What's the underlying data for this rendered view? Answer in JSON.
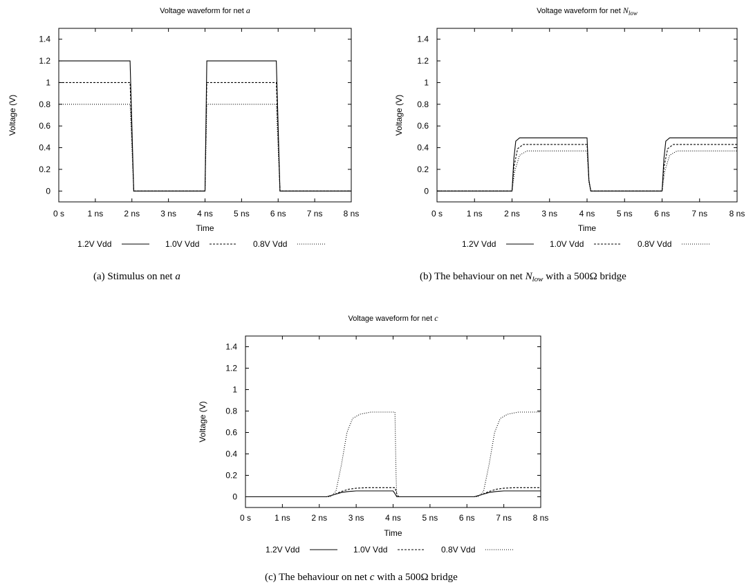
{
  "chart_data": [
    {
      "type": "line",
      "title": "Voltage waveform for net",
      "title_var": "a",
      "title_sub": "",
      "xlabel": "Time",
      "ylabel": "Voltage (V)",
      "xlim": [
        0,
        8
      ],
      "ylim": [
        -0.1,
        1.5
      ],
      "xticks": [
        "0  s",
        "1 ns",
        "2 ns",
        "3 ns",
        "4 ns",
        "5 ns",
        "6 ns",
        "7 ns",
        "8 ns"
      ],
      "yticks": [
        "0",
        "0.2",
        "0.4",
        "0.6",
        "0.8",
        "1",
        "1.2",
        "1.4"
      ],
      "ytick_values": [
        0,
        0.2,
        0.4,
        0.6,
        0.8,
        1.0,
        1.2,
        1.4
      ],
      "grid": false,
      "legend_placement": "bottom",
      "caption_label": "(a)",
      "caption_text": "Stimulus on net",
      "caption_var": "a",
      "caption_tail": "",
      "series": [
        {
          "name": "1.2V Vdd",
          "dash": "solid",
          "x": [
            0,
            1.95,
            2.05,
            4.0,
            4.05,
            5.95,
            6.05,
            8.0
          ],
          "y": [
            1.2,
            1.2,
            0,
            0,
            1.2,
            1.2,
            0,
            0
          ]
        },
        {
          "name": "1.0V Vdd",
          "dash": "dashed",
          "x": [
            0,
            1.95,
            2.05,
            4.0,
            4.05,
            5.95,
            6.05,
            8.0
          ],
          "y": [
            1.0,
            1.0,
            0,
            0,
            1.0,
            1.0,
            0,
            0
          ]
        },
        {
          "name": "0.8V Vdd",
          "dash": "dotted",
          "x": [
            0,
            1.95,
            2.05,
            4.0,
            4.05,
            5.95,
            6.05,
            8.0
          ],
          "y": [
            0.8,
            0.8,
            0,
            0,
            0.8,
            0.8,
            0,
            0
          ]
        }
      ]
    },
    {
      "type": "line",
      "title": "Voltage waveform for net",
      "title_var": "N",
      "title_sub": "low",
      "xlabel": "Time",
      "ylabel": "Voltage (V)",
      "xlim": [
        0,
        8
      ],
      "ylim": [
        -0.1,
        1.5
      ],
      "xticks": [
        "0  s",
        "1 ns",
        "2 ns",
        "3 ns",
        "4 ns",
        "5 ns",
        "6 ns",
        "7 ns",
        "8 ns"
      ],
      "yticks": [
        "0",
        "0.2",
        "0.4",
        "0.6",
        "0.8",
        "1",
        "1.2",
        "1.4"
      ],
      "ytick_values": [
        0,
        0.2,
        0.4,
        0.6,
        0.8,
        1.0,
        1.2,
        1.4
      ],
      "grid": false,
      "legend_placement": "bottom",
      "caption_label": "(b)",
      "caption_text": "The behaviour on net",
      "caption_var": "N",
      "caption_sub": "low",
      "caption_tail": "with a 500Ω bridge",
      "series": [
        {
          "name": "1.2V Vdd",
          "dash": "solid",
          "x": [
            0,
            2.0,
            2.05,
            2.1,
            2.2,
            4.0,
            4.05,
            4.1,
            6.0,
            6.05,
            6.1,
            6.2,
            8.0
          ],
          "y": [
            0,
            0,
            0.3,
            0.46,
            0.49,
            0.49,
            0.1,
            0,
            0,
            0.3,
            0.46,
            0.49,
            0.49
          ]
        },
        {
          "name": "1.0V Vdd",
          "dash": "dashed",
          "x": [
            0,
            2.0,
            2.05,
            2.15,
            2.3,
            4.0,
            4.05,
            4.1,
            6.0,
            6.05,
            6.15,
            6.3,
            8.0
          ],
          "y": [
            0,
            0,
            0.22,
            0.39,
            0.43,
            0.43,
            0.1,
            0,
            0,
            0.22,
            0.39,
            0.43,
            0.43
          ]
        },
        {
          "name": "0.8V Vdd",
          "dash": "dotted",
          "x": [
            0,
            2.0,
            2.07,
            2.2,
            2.4,
            4.0,
            4.05,
            4.1,
            6.0,
            6.07,
            6.2,
            6.4,
            8.0
          ],
          "y": [
            0,
            0,
            0.18,
            0.33,
            0.37,
            0.37,
            0.08,
            0,
            0,
            0.18,
            0.33,
            0.37,
            0.37
          ]
        }
      ]
    },
    {
      "type": "line",
      "title": "Voltage waveform for net",
      "title_var": "c",
      "title_sub": "",
      "xlabel": "Time",
      "ylabel": "Voltage (V)",
      "xlim": [
        0,
        8
      ],
      "ylim": [
        -0.1,
        1.5
      ],
      "xticks": [
        "0  s",
        "1 ns",
        "2 ns",
        "3 ns",
        "4 ns",
        "5 ns",
        "6 ns",
        "7 ns",
        "8 ns"
      ],
      "yticks": [
        "0",
        "0.2",
        "0.4",
        "0.6",
        "0.8",
        "1",
        "1.2",
        "1.4"
      ],
      "ytick_values": [
        0,
        0.2,
        0.4,
        0.6,
        0.8,
        1.0,
        1.2,
        1.4
      ],
      "grid": false,
      "legend_placement": "bottom",
      "caption_label": "(c)",
      "caption_text": "The behaviour on net",
      "caption_var": "c",
      "caption_tail": "with a 500Ω bridge",
      "series": [
        {
          "name": "1.2V Vdd",
          "dash": "solid",
          "x": [
            0,
            2.2,
            2.4,
            2.6,
            2.8,
            3.0,
            4.0,
            4.05,
            4.1,
            6.2,
            6.4,
            6.6,
            6.8,
            7.0,
            8.0
          ],
          "y": [
            0,
            0,
            0.02,
            0.04,
            0.05,
            0.055,
            0.055,
            0.03,
            0,
            0,
            0.02,
            0.04,
            0.05,
            0.055,
            0.055
          ]
        },
        {
          "name": "1.0V Vdd",
          "dash": "dashed",
          "x": [
            0,
            2.2,
            2.4,
            2.6,
            2.8,
            3.0,
            3.3,
            4.05,
            4.1,
            4.15,
            6.2,
            6.4,
            6.6,
            6.8,
            7.0,
            7.3,
            8.0
          ],
          "y": [
            0,
            0,
            0.02,
            0.05,
            0.07,
            0.08,
            0.085,
            0.085,
            0.03,
            0,
            0,
            0.02,
            0.05,
            0.07,
            0.08,
            0.085,
            0.085
          ]
        },
        {
          "name": "0.8V Vdd",
          "dash": "dotted",
          "x": [
            0,
            2.3,
            2.45,
            2.6,
            2.75,
            2.9,
            3.1,
            3.4,
            4.05,
            4.08,
            4.1,
            6.3,
            6.45,
            6.6,
            6.75,
            6.9,
            7.1,
            7.4,
            8.0
          ],
          "y": [
            0,
            0,
            0.05,
            0.3,
            0.6,
            0.73,
            0.77,
            0.79,
            0.79,
            0.2,
            0,
            0,
            0.05,
            0.3,
            0.6,
            0.73,
            0.77,
            0.79,
            0.79
          ]
        }
      ]
    }
  ]
}
